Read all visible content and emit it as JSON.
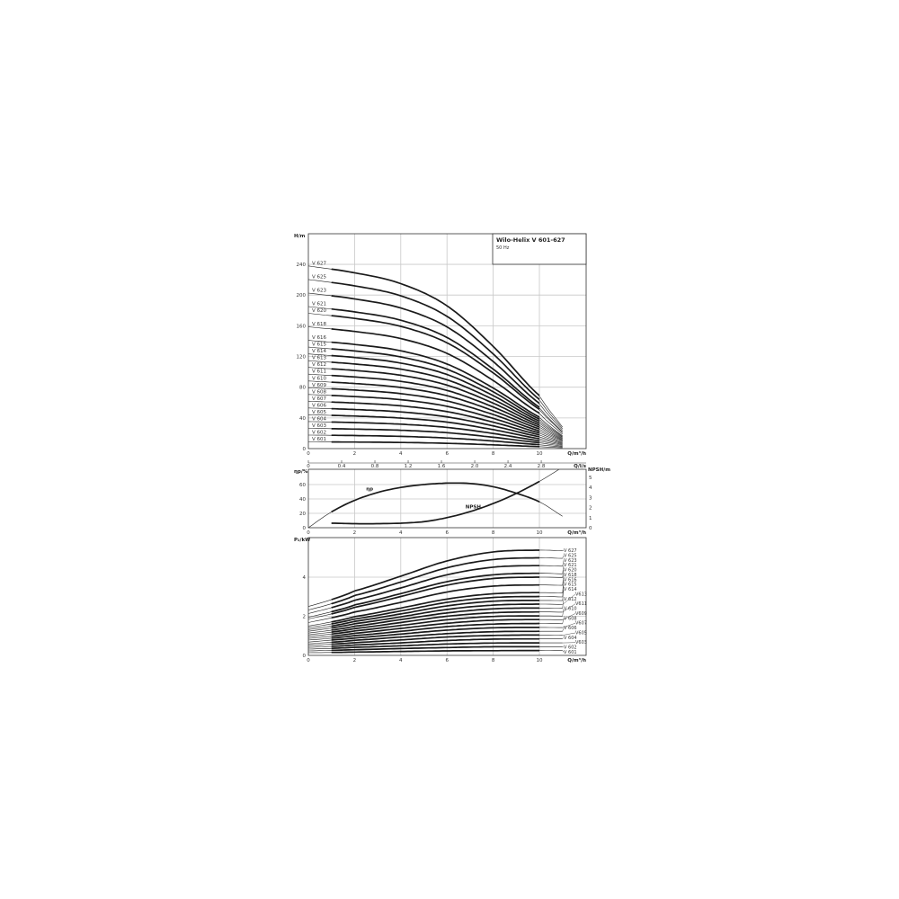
{
  "title": "Wilo-Helix V 601-627",
  "subtitle": "50 Hz",
  "colors": {
    "curve": "#1a1a1a",
    "grid": "#c8c8c8",
    "frame": "#333333"
  },
  "chart_data": [
    {
      "type": "line",
      "ylabel": "H/m",
      "xlabel": "Q/m³/h",
      "x2label": "Q/l/s",
      "xlim": [
        0,
        12
      ],
      "ylim": [
        0,
        280
      ],
      "xticks": [
        0,
        2,
        4,
        6,
        8,
        10
      ],
      "x2ticks": [
        "0",
        "0.4",
        "0.8",
        "1.2",
        "1.6",
        "2.0",
        "2.4",
        "2.8"
      ],
      "yticks": [
        0,
        40,
        80,
        120,
        160,
        200,
        240
      ],
      "grid": true,
      "x": [
        0,
        2,
        4,
        6,
        8,
        10,
        11
      ],
      "series": [
        {
          "name": "V 601",
          "values": [
            8.8,
            8.5,
            8.0,
            6.9,
            4.9,
            2.6,
            1.0
          ]
        },
        {
          "name": "V 602",
          "values": [
            17.6,
            17.0,
            15.9,
            13.8,
            9.9,
            5.1,
            2.1
          ]
        },
        {
          "name": "V 603",
          "values": [
            26.4,
            25.4,
            23.9,
            20.7,
            14.8,
            7.7,
            3.1
          ]
        },
        {
          "name": "V 604",
          "values": [
            35.2,
            33.9,
            31.8,
            27.6,
            19.7,
            10.2,
            4.2
          ]
        },
        {
          "name": "V 605",
          "values": [
            44.1,
            42.4,
            39.8,
            34.5,
            24.7,
            12.8,
            5.2
          ]
        },
        {
          "name": "V 606",
          "values": [
            52.9,
            50.9,
            47.8,
            41.3,
            29.6,
            15.4,
            6.2
          ]
        },
        {
          "name": "V 607",
          "values": [
            61.7,
            59.4,
            55.7,
            48.2,
            34.5,
            17.9,
            7.3
          ]
        },
        {
          "name": "V 608",
          "values": [
            70.5,
            67.8,
            63.7,
            55.1,
            39.4,
            20.5,
            8.3
          ]
        },
        {
          "name": "V 609",
          "values": [
            79.3,
            76.3,
            71.6,
            62.0,
            44.4,
            23.0,
            9.4
          ]
        },
        {
          "name": "V 610",
          "values": [
            88.1,
            84.8,
            79.6,
            68.9,
            49.3,
            25.6,
            10.4
          ]
        },
        {
          "name": "V 611",
          "values": [
            96.9,
            93.3,
            87.6,
            75.8,
            54.2,
            28.2,
            11.4
          ]
        },
        {
          "name": "V 612",
          "values": [
            105.7,
            101.8,
            95.5,
            82.7,
            59.2,
            30.7,
            12.5
          ]
        },
        {
          "name": "V 613",
          "values": [
            114.5,
            110.2,
            103.5,
            89.6,
            64.1,
            33.3,
            13.5
          ]
        },
        {
          "name": "V 614",
          "values": [
            123.3,
            118.7,
            111.4,
            96.5,
            69.0,
            35.8,
            14.6
          ]
        },
        {
          "name": "V 615",
          "values": [
            132.2,
            127.2,
            119.4,
            103.4,
            74.0,
            38.4,
            15.6
          ]
        },
        {
          "name": "V 616",
          "values": [
            141.0,
            135.7,
            127.4,
            110.2,
            78.9,
            41.0,
            16.6
          ]
        },
        {
          "name": "V 618",
          "values": [
            158.6,
            152.6,
            143.3,
            124.0,
            88.7,
            46.1,
            18.7
          ]
        },
        {
          "name": "V 620",
          "values": [
            176.2,
            169.6,
            159.2,
            137.8,
            98.6,
            51.2,
            20.8
          ]
        },
        {
          "name": "V 621",
          "values": [
            185.0,
            178.1,
            167.2,
            144.7,
            103.5,
            53.8,
            21.8
          ]
        },
        {
          "name": "V 623",
          "values": [
            202.6,
            195.0,
            183.1,
            158.5,
            113.4,
            58.9,
            23.9
          ]
        },
        {
          "name": "V 625",
          "values": [
            220.3,
            212.0,
            199.0,
            172.3,
            123.3,
            64.0,
            26.0
          ]
        },
        {
          "name": "V 627",
          "values": [
            237.9,
            229.0,
            214.9,
            186.0,
            133.1,
            69.1,
            28.1
          ]
        }
      ]
    },
    {
      "type": "line",
      "ylabel": "ηp/%",
      "y2label": "NPSH/m",
      "xlabel": "Q/m³/h",
      "xlim": [
        0,
        12
      ],
      "ylim": [
        0,
        80
      ],
      "y2lim": [
        0,
        5.8
      ],
      "xticks": [
        0,
        2,
        4,
        6,
        8,
        10
      ],
      "yticks": [
        0,
        20,
        40,
        60
      ],
      "y2ticks": [
        0,
        1,
        2,
        3,
        4,
        5
      ],
      "grid": true,
      "series": [
        {
          "name": "ηp",
          "x": [
            0,
            1,
            2,
            3,
            4,
            5,
            6,
            7,
            8,
            9,
            10,
            11
          ],
          "values": [
            0,
            22,
            38,
            49,
            56,
            60,
            62,
            61.5,
            57,
            48,
            36,
            16
          ]
        },
        {
          "name": "NPSH",
          "x": [
            1,
            2,
            3,
            4,
            5,
            6,
            7,
            8,
            9,
            10,
            11
          ],
          "values": [
            0.45,
            0.4,
            0.4,
            0.45,
            0.6,
            1.0,
            1.6,
            2.4,
            3.4,
            4.6,
            6.0
          ]
        }
      ]
    },
    {
      "type": "line",
      "ylabel": "P₂/kW",
      "xlabel": "Q/m³/h",
      "xlim": [
        0,
        12
      ],
      "ylim": [
        0,
        6
      ],
      "xticks": [
        0,
        2,
        4,
        6,
        8,
        10
      ],
      "yticks": [
        0,
        2,
        4
      ],
      "grid": true,
      "x": [
        0,
        1,
        2,
        4,
        6,
        8,
        10,
        11
      ],
      "series": [
        {
          "name": "V 601",
          "values": [
            0.14,
            0.15,
            0.17,
            0.2,
            0.23,
            0.24,
            0.25,
            0.25
          ]
        },
        {
          "name": "V 602",
          "values": [
            0.23,
            0.26,
            0.29,
            0.35,
            0.4,
            0.44,
            0.44,
            0.44
          ]
        },
        {
          "name": "V603",
          "values": [
            0.32,
            0.36,
            0.41,
            0.49,
            0.58,
            0.63,
            0.64,
            0.64
          ]
        },
        {
          "name": "V 604",
          "values": [
            0.41,
            0.46,
            0.53,
            0.64,
            0.76,
            0.83,
            0.84,
            0.84
          ]
        },
        {
          "name": "V605",
          "values": [
            0.5,
            0.57,
            0.65,
            0.79,
            0.94,
            1.02,
            1.04,
            1.03
          ]
        },
        {
          "name": "V 606",
          "values": [
            0.59,
            0.67,
            0.77,
            0.94,
            1.11,
            1.21,
            1.23,
            1.23
          ]
        },
        {
          "name": "V607",
          "values": [
            0.68,
            0.78,
            0.89,
            1.09,
            1.29,
            1.41,
            1.43,
            1.42
          ]
        },
        {
          "name": "V 608",
          "values": [
            0.78,
            0.88,
            1.01,
            1.23,
            1.47,
            1.6,
            1.63,
            1.62
          ]
        },
        {
          "name": "V609",
          "values": [
            0.87,
            0.98,
            1.13,
            1.38,
            1.64,
            1.8,
            1.83,
            1.82
          ]
        },
        {
          "name": "V 610",
          "values": [
            0.96,
            1.09,
            1.25,
            1.53,
            1.82,
            1.99,
            2.02,
            2.01
          ]
        },
        {
          "name": "V611",
          "values": [
            1.05,
            1.19,
            1.37,
            1.68,
            2.0,
            2.18,
            2.22,
            2.21
          ]
        },
        {
          "name": "V 612",
          "values": [
            1.14,
            1.29,
            1.49,
            1.83,
            2.17,
            2.38,
            2.42,
            2.41
          ]
        },
        {
          "name": "V613",
          "values": [
            1.23,
            1.4,
            1.62,
            1.97,
            2.35,
            2.57,
            2.62,
            2.6
          ]
        },
        {
          "name": "V 614",
          "values": [
            1.32,
            1.5,
            1.74,
            2.12,
            2.53,
            2.77,
            2.81,
            2.8
          ]
        },
        {
          "name": "V 615",
          "values": [
            1.41,
            1.61,
            1.86,
            2.27,
            2.71,
            2.96,
            3.01,
            2.99
          ]
        },
        {
          "name": "V 616",
          "values": [
            1.5,
            1.71,
            1.98,
            2.42,
            2.88,
            3.15,
            3.21,
            3.19
          ]
        },
        {
          "name": "V 618",
          "values": [
            1.68,
            1.92,
            2.22,
            2.71,
            3.24,
            3.54,
            3.6,
            3.58
          ]
        },
        {
          "name": "V 620",
          "values": [
            1.86,
            2.12,
            2.46,
            3.01,
            3.59,
            3.93,
            4.0,
            3.98
          ]
        },
        {
          "name": "V 621",
          "values": [
            1.95,
            2.23,
            2.58,
            3.16,
            3.77,
            4.12,
            4.2,
            4.17
          ]
        },
        {
          "name": "V 623",
          "values": [
            2.14,
            2.44,
            2.82,
            3.45,
            4.12,
            4.51,
            4.59,
            4.56
          ]
        },
        {
          "name": "V 625",
          "values": [
            2.32,
            2.64,
            3.06,
            3.75,
            4.48,
            4.9,
            4.99,
            4.96
          ]
        },
        {
          "name": "V 627",
          "values": [
            2.5,
            2.85,
            3.3,
            4.05,
            4.83,
            5.29,
            5.38,
            5.35
          ]
        }
      ]
    }
  ]
}
